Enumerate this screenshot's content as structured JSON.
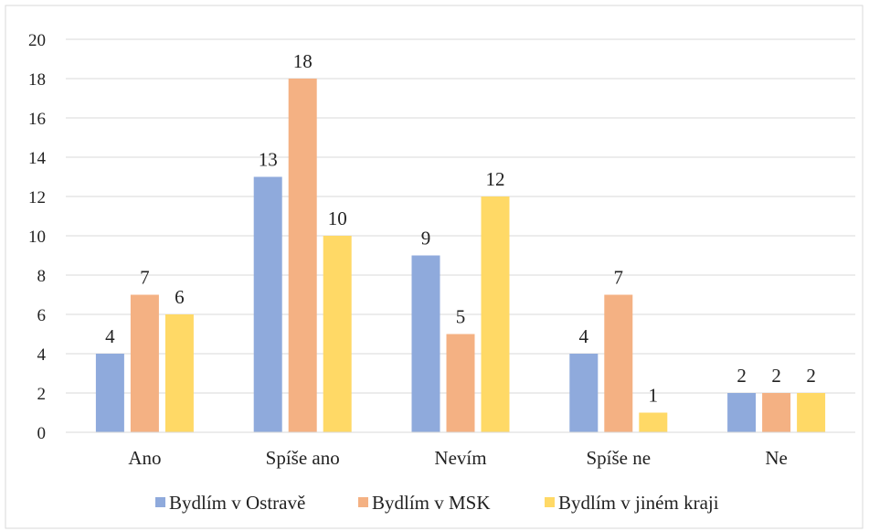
{
  "chart_data": {
    "type": "bar",
    "categories": [
      "Ano",
      "Spíše ano",
      "Nevím",
      "Spíše ne",
      "Ne"
    ],
    "series": [
      {
        "name": "Bydlím v Ostravě",
        "color": "#8faadc",
        "values": [
          4,
          13,
          9,
          4,
          2
        ]
      },
      {
        "name": "Bydlím v MSK",
        "color": "#f4b183",
        "values": [
          7,
          18,
          5,
          7,
          2
        ]
      },
      {
        "name": "Bydlím v jiném kraji",
        "color": "#ffd966",
        "values": [
          6,
          10,
          12,
          1,
          2
        ]
      }
    ],
    "yticks": [
      0,
      2,
      4,
      6,
      8,
      10,
      12,
      14,
      16,
      18,
      20
    ],
    "ylim": [
      0,
      20
    ],
    "grid": true,
    "legend": "bottom"
  }
}
